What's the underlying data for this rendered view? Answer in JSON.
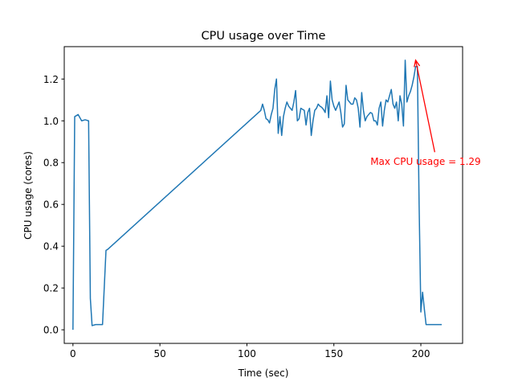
{
  "chart_data": {
    "type": "line",
    "title": "CPU usage over Time",
    "xlabel": "Time (sec)",
    "ylabel": "CPU usage (cores)",
    "xlim": [
      -5,
      224
    ],
    "ylim": [
      -0.065,
      1.355
    ],
    "xticks": [
      0,
      50,
      100,
      150,
      200
    ],
    "yticks": [
      0.0,
      0.2,
      0.4,
      0.6,
      0.8,
      1.0,
      1.2
    ],
    "xtick_labels": [
      "0",
      "50",
      "100",
      "150",
      "200"
    ],
    "ytick_labels": [
      "0.0",
      "0.2",
      "0.4",
      "0.6",
      "0.8",
      "1.0",
      "1.2"
    ],
    "grid": false,
    "series": [
      {
        "color": "#1f77b4",
        "x": [
          0,
          1,
          3,
          5,
          7,
          9,
          10,
          11,
          13,
          15,
          17,
          19,
          20,
          108,
          109,
          110,
          111,
          112,
          113,
          114,
          115,
          116,
          117,
          118,
          119,
          120,
          121,
          122,
          123,
          124,
          125,
          126,
          127,
          128,
          129,
          130,
          131,
          132,
          133,
          134,
          135,
          136,
          137,
          138,
          139,
          140,
          141,
          142,
          143,
          144,
          145,
          146,
          147,
          148,
          149,
          150,
          151,
          152,
          153,
          154,
          155,
          156,
          157,
          158,
          159,
          160,
          161,
          162,
          163,
          164,
          165,
          166,
          167,
          168,
          169,
          170,
          171,
          172,
          173,
          174,
          175,
          176,
          177,
          178,
          179,
          180,
          181,
          182,
          183,
          184,
          185,
          186,
          187,
          188,
          189,
          190,
          191,
          192,
          193,
          194,
          195,
          196,
          197,
          198,
          199,
          200,
          201,
          202,
          203,
          204,
          205,
          206,
          207,
          208,
          209,
          210,
          212
        ],
        "y": [
          0.0,
          1.02,
          1.03,
          1.0,
          1.005,
          1.0,
          0.15,
          0.02,
          0.025,
          0.025,
          0.025,
          0.38,
          0.385,
          1.05,
          1.08,
          1.05,
          1.01,
          1.005,
          0.99,
          1.03,
          1.06,
          1.15,
          1.2,
          0.94,
          1.02,
          0.93,
          1.02,
          1.06,
          1.09,
          1.07,
          1.06,
          1.05,
          1.09,
          1.145,
          1.0,
          1.01,
          1.06,
          1.055,
          1.05,
          0.98,
          1.04,
          1.06,
          0.93,
          1.0,
          1.05,
          1.06,
          1.08,
          1.07,
          1.065,
          1.055,
          1.04,
          1.12,
          1.015,
          1.19,
          1.1,
          1.07,
          1.05,
          1.07,
          1.09,
          1.04,
          0.97,
          0.985,
          1.17,
          1.1,
          1.09,
          1.08,
          1.08,
          1.11,
          1.1,
          1.06,
          0.97,
          1.135,
          1.05,
          1.0,
          1.02,
          1.03,
          1.04,
          1.035,
          1.0,
          1.0,
          0.98,
          1.06,
          1.09,
          0.975,
          1.05,
          1.1,
          1.09,
          1.12,
          1.15,
          1.08,
          1.06,
          1.09,
          1.0,
          1.12,
          1.08,
          0.975,
          1.29,
          1.09,
          1.12,
          1.14,
          1.17,
          1.21,
          1.26,
          1.26,
          0.6,
          0.085,
          0.18,
          0.1,
          0.025,
          0.025,
          0.025,
          0.025,
          0.025,
          0.025,
          0.025,
          0.025,
          0.025
        ]
      }
    ],
    "annotations": [
      {
        "text": "Max CPU usage = 1.29",
        "color": "#ff0000",
        "text_x": 171,
        "text_y": 0.79,
        "arrow_from": [
          208,
          0.85
        ],
        "arrow_to": [
          197,
          1.29
        ]
      }
    ]
  }
}
